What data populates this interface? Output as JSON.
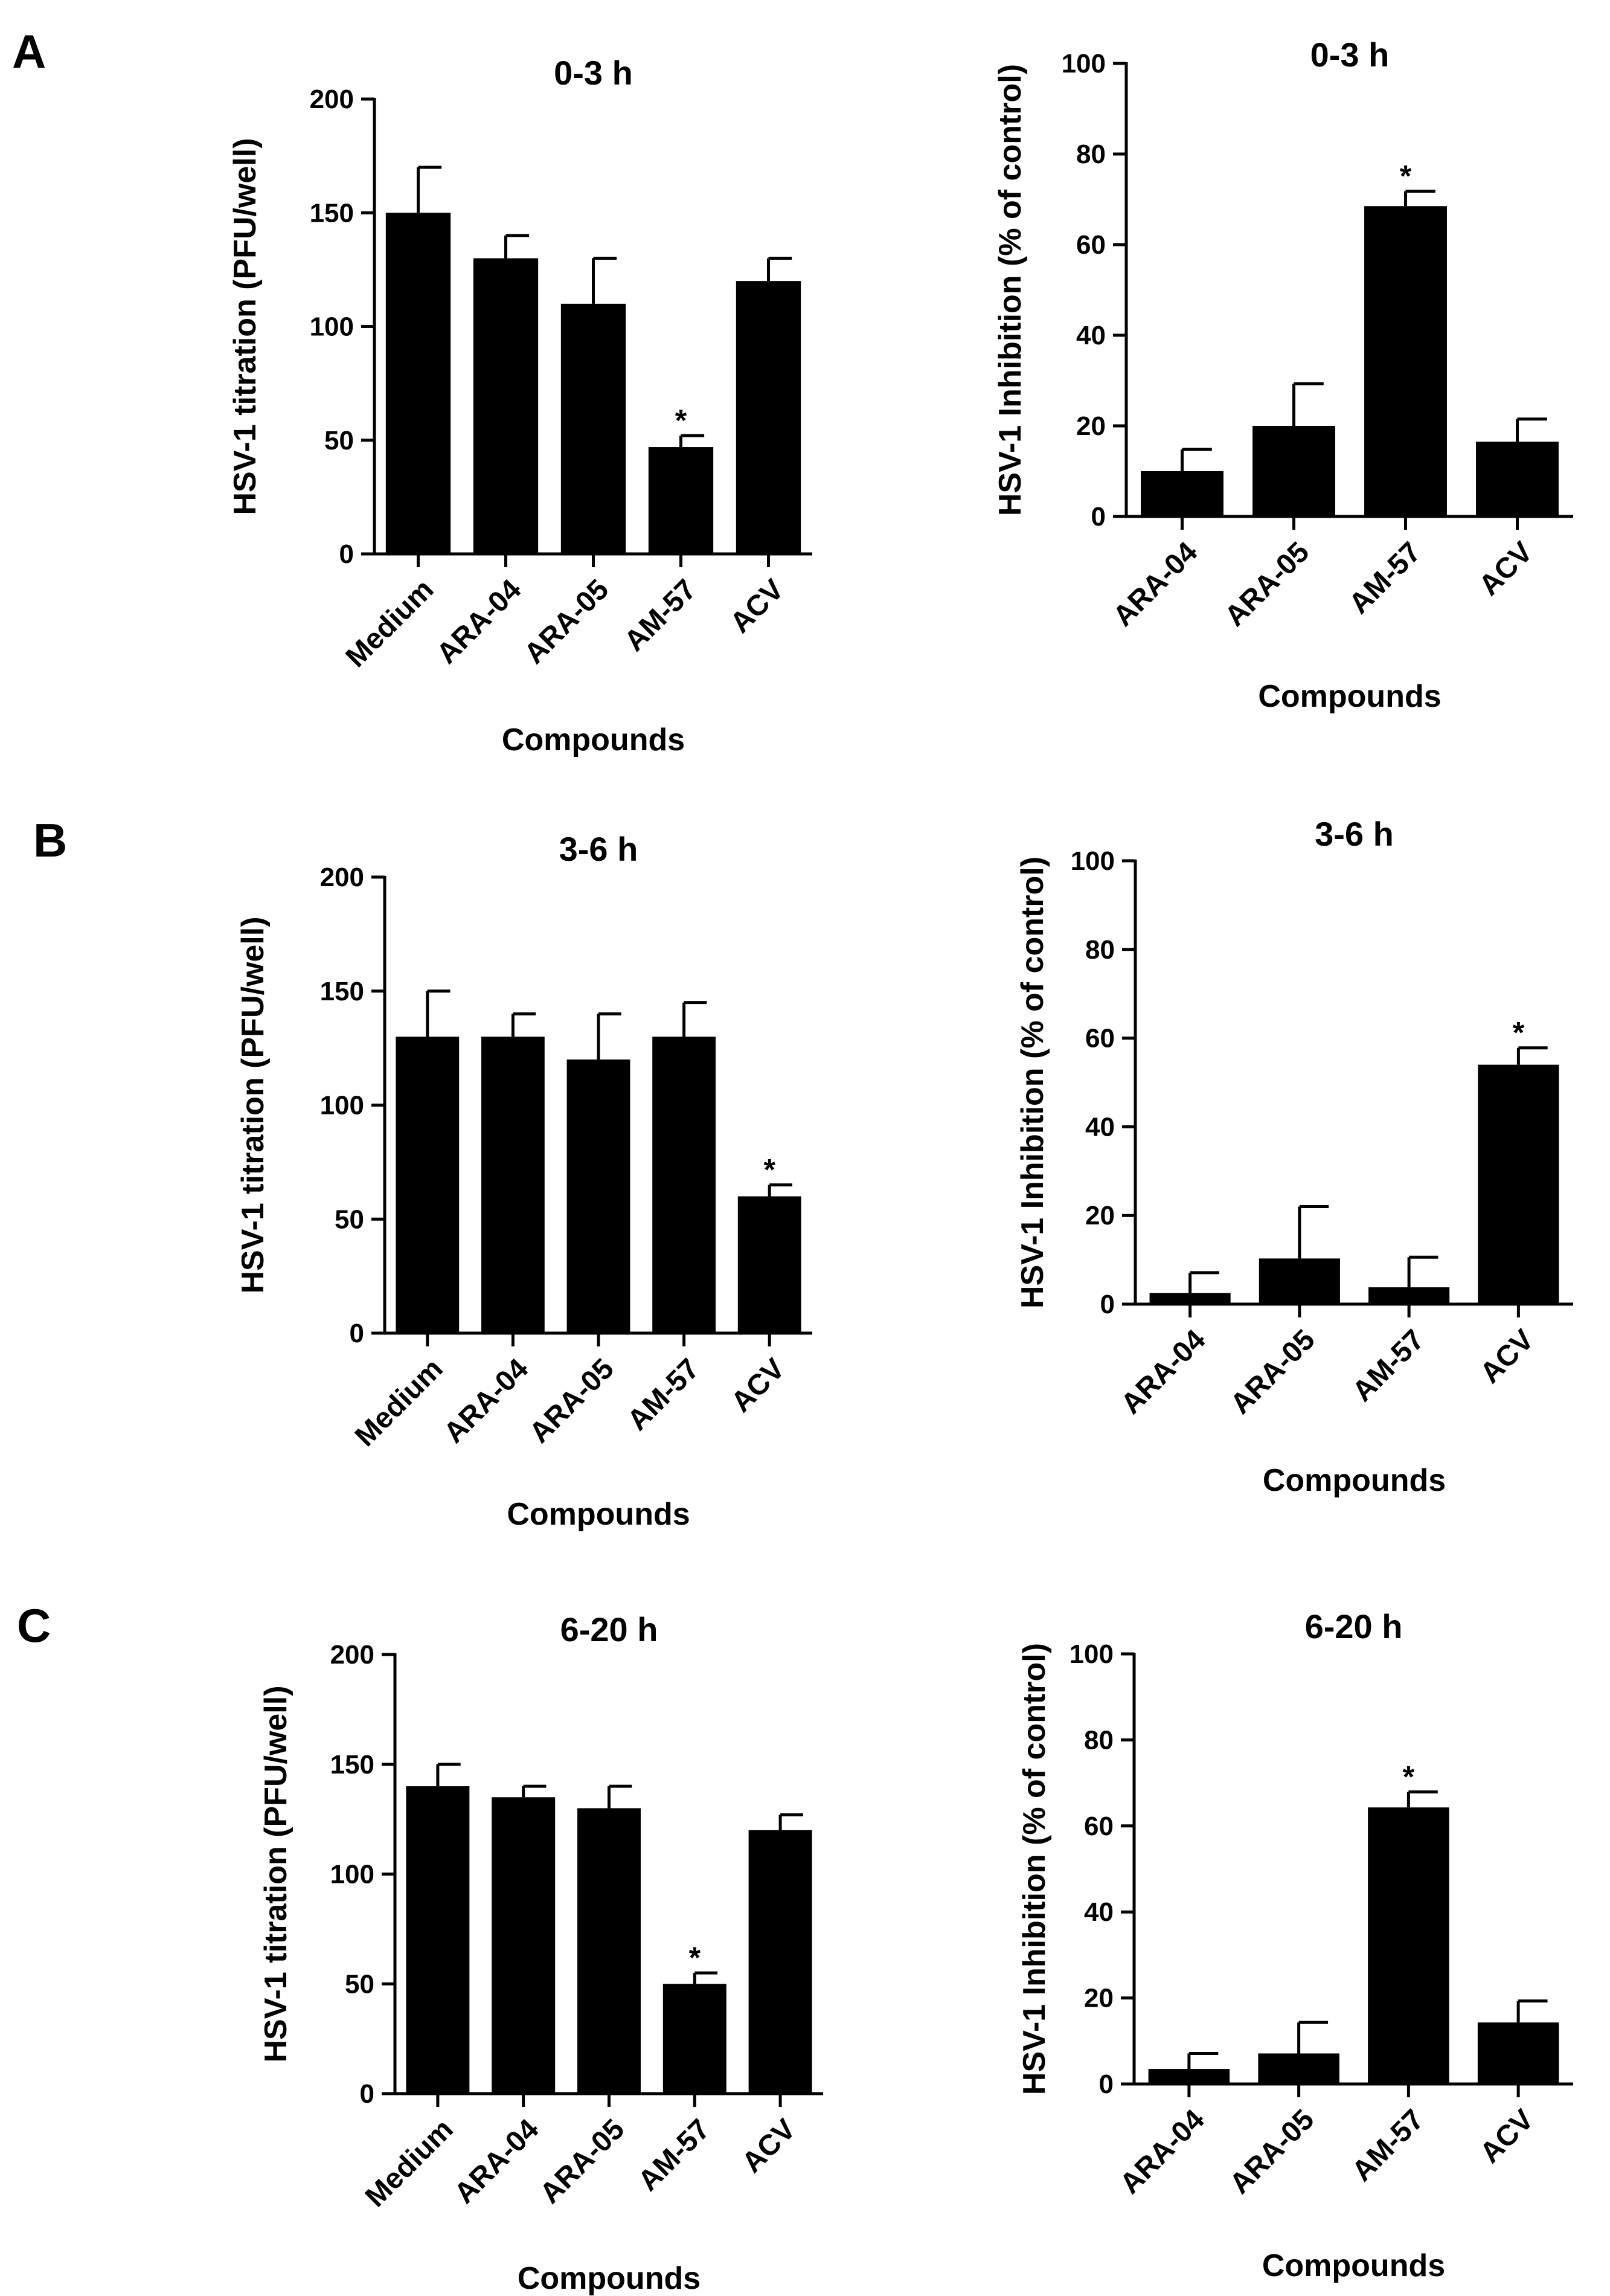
{
  "panel_letters": [
    "A",
    "B",
    "C"
  ],
  "chart_data": [
    {
      "panel": "A",
      "type": "bar",
      "title": "0-3 h",
      "xlabel": "Compounds",
      "ylabel": "HSV-1 titration (PFU/well)",
      "ylim": [
        0,
        200
      ],
      "yticks": [
        0,
        50,
        100,
        150,
        200
      ],
      "categories": [
        "Medium",
        "ARA-04",
        "ARA-05",
        "AM-57",
        "ACV"
      ],
      "values": [
        150,
        130,
        110,
        47,
        120
      ],
      "errors": [
        20,
        10,
        20,
        5,
        10
      ],
      "significant": [
        false,
        false,
        false,
        true,
        false
      ]
    },
    {
      "panel": "A",
      "type": "bar",
      "title": "0-3 h",
      "xlabel": "Compounds",
      "ylabel": "HSV-1 Inhibition (% of control)",
      "ylim": [
        0,
        100
      ],
      "yticks": [
        0,
        20,
        40,
        60,
        80,
        100
      ],
      "categories": [
        "ARA-04",
        "ARA-05",
        "AM-57",
        "ACV"
      ],
      "values": [
        10,
        20,
        68.5,
        16.5
      ],
      "errors": [
        4.8,
        9.3,
        3.3,
        5
      ],
      "significant": [
        false,
        false,
        true,
        false
      ]
    },
    {
      "panel": "B",
      "type": "bar",
      "title": "3-6 h",
      "xlabel": "Compounds",
      "ylabel": "HSV-1 titration (PFU/well)",
      "ylim": [
        0,
        200
      ],
      "yticks": [
        0,
        50,
        100,
        150,
        200
      ],
      "categories": [
        "Medium",
        "ARA-04",
        "ARA-05",
        "AM-57",
        "ACV"
      ],
      "values": [
        130,
        130,
        120,
        130,
        60
      ],
      "errors": [
        20,
        10,
        20,
        15,
        5
      ],
      "significant": [
        false,
        false,
        false,
        false,
        true
      ]
    },
    {
      "panel": "B",
      "type": "bar",
      "title": "3-6 h",
      "xlabel": "Compounds",
      "ylabel": "HSV-1 Inhibition (% of control)",
      "ylim": [
        0,
        100
      ],
      "yticks": [
        0,
        20,
        40,
        60,
        80,
        100
      ],
      "categories": [
        "ARA-04",
        "ARA-05",
        "AM-57",
        "ACV"
      ],
      "values": [
        2.5,
        10.3,
        3.8,
        54
      ],
      "errors": [
        4.6,
        11.7,
        6.8,
        3.8
      ],
      "significant": [
        false,
        false,
        false,
        true
      ]
    },
    {
      "panel": "C",
      "type": "bar",
      "title": "6-20 h",
      "xlabel": "Compounds",
      "ylabel": "HSV-1 titration (PFU/well)",
      "ylim": [
        0,
        200
      ],
      "yticks": [
        0,
        50,
        100,
        150,
        200
      ],
      "categories": [
        "Medium",
        "ARA-04",
        "ARA-05",
        "AM-57",
        "ACV"
      ],
      "values": [
        140,
        135,
        130,
        50,
        120
      ],
      "errors": [
        10,
        5,
        10,
        5,
        7
      ],
      "significant": [
        false,
        false,
        false,
        true,
        false
      ]
    },
    {
      "panel": "C",
      "type": "bar",
      "title": "6-20 h",
      "xlabel": "Compounds",
      "ylabel": "HSV-1 Inhibition (% of control)",
      "ylim": [
        0,
        100
      ],
      "yticks": [
        0,
        20,
        40,
        60,
        80,
        100
      ],
      "categories": [
        "ARA-04",
        "ARA-05",
        "AM-57",
        "ACV"
      ],
      "values": [
        3.5,
        7.1,
        64.3,
        14.3
      ],
      "errors": [
        3.6,
        7.2,
        3.6,
        5
      ],
      "significant": [
        false,
        false,
        true,
        false
      ]
    }
  ]
}
